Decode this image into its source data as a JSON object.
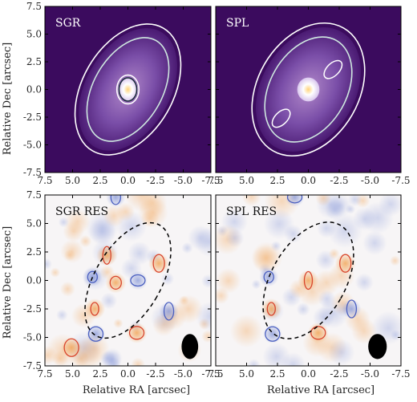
{
  "chart_data": {
    "type": "heatmap",
    "layout": "2x2 panels",
    "xlabel": "Relative RA [arcsec]",
    "ylabel": "Relative Dec [arcsec]",
    "xlim": [
      7.5,
      -7.5
    ],
    "ylim": [
      -7.5,
      7.5
    ],
    "xticks": [
      7.5,
      5.0,
      2.5,
      0.0,
      -2.5,
      -5.0,
      -7.5
    ],
    "yticks": [
      7.5,
      5.0,
      2.5,
      0.0,
      -2.5,
      -5.0,
      -7.5
    ],
    "tick_labels": [
      "7.5",
      "5.0",
      "2.5",
      "0.0",
      "-2.5",
      "-5.0",
      "-7.5"
    ],
    "panels": [
      {
        "label": "SGR",
        "kind": "model",
        "colormap": "magma-like (dark purple to yellow)",
        "background": "#3b0b5e",
        "disk": {
          "center": [
            0,
            0
          ],
          "semi_major": 6.0,
          "semi_minor": 3.8,
          "position_angle_deg": 30
        },
        "core": {
          "center": [
            0,
            0
          ],
          "radius": 0.9
        },
        "contours": [
          {
            "shape": "ellipse",
            "semi_major": 6.4,
            "semi_minor": 4.1,
            "color": "#ffffff"
          },
          {
            "shape": "ellipse",
            "semi_major": 5.1,
            "semi_minor": 3.1,
            "color": "#cfe8e0"
          },
          {
            "shape": "ellipse",
            "semi_major": 1.3,
            "semi_minor": 1.0,
            "color": "#ffffff"
          },
          {
            "shape": "ellipse",
            "semi_major": 1.05,
            "semi_minor": 0.8,
            "color": "#1a2a3a"
          }
        ]
      },
      {
        "label": "SPL",
        "kind": "model",
        "colormap": "magma-like (dark purple to yellow)",
        "background": "#3b0b5e",
        "disk": {
          "center": [
            0,
            0
          ],
          "semi_major": 6.0,
          "semi_minor": 3.8,
          "position_angle_deg": 30
        },
        "core": {
          "center": [
            0,
            0
          ],
          "radius": 0.9
        },
        "contours": [
          {
            "shape": "ellipse",
            "semi_major": 6.4,
            "semi_minor": 4.1,
            "color": "#ffffff"
          },
          {
            "shape": "ellipse",
            "semi_major": 5.1,
            "semi_minor": 3.1,
            "color": "#cfe8e0"
          },
          {
            "shape": "blob",
            "center": [
              -2.0,
              1.8
            ],
            "color": "#ffffff"
          },
          {
            "shape": "blob",
            "center": [
              2.2,
              -2.6
            ],
            "color": "#ffffff"
          }
        ]
      },
      {
        "label": "SGR RES",
        "kind": "residual",
        "colormap": "blue-white-orange",
        "disk_outline": {
          "center": [
            0,
            0
          ],
          "semi_major": 5.6,
          "semi_minor": 3.0,
          "position_angle_deg": 30,
          "style": "dashed"
        },
        "beam": {
          "center": [
            -5.6,
            -5.8
          ],
          "width": 1.5,
          "height": 2.2
        },
        "positive_contours": [
          {
            "center": [
              3.0,
              -2.5
            ]
          },
          {
            "center": [
              -2.8,
              1.5
            ]
          },
          {
            "center": [
              -0.8,
              -4.6
            ]
          },
          {
            "center": [
              1.9,
              2.2
            ]
          },
          {
            "center": [
              1.1,
              -0.2
            ]
          },
          {
            "center": [
              5.1,
              -5.9
            ]
          }
        ],
        "negative_contours": [
          {
            "center": [
              3.2,
              0.3
            ]
          },
          {
            "center": [
              2.9,
              -4.7
            ]
          },
          {
            "center": [
              -3.7,
              -2.7
            ]
          },
          {
            "center": [
              -0.9,
              0.0
            ]
          },
          {
            "center": [
              1.1,
              7.3
            ]
          }
        ]
      },
      {
        "label": "SPL RES",
        "kind": "residual",
        "colormap": "blue-white-orange",
        "disk_outline": {
          "center": [
            0,
            0
          ],
          "semi_major": 5.6,
          "semi_minor": 3.0,
          "position_angle_deg": 30,
          "style": "dashed"
        },
        "beam": {
          "center": [
            -5.6,
            -5.8
          ],
          "width": 1.5,
          "height": 2.2
        },
        "positive_contours": [
          {
            "center": [
              3.0,
              -2.5
            ]
          },
          {
            "center": [
              -3.0,
              1.5
            ]
          },
          {
            "center": [
              -0.8,
              -4.6
            ]
          },
          {
            "center": [
              0.0,
              0.0
            ]
          }
        ],
        "negative_contours": [
          {
            "center": [
              3.2,
              0.3
            ]
          },
          {
            "center": [
              2.9,
              -4.7
            ]
          },
          {
            "center": [
              -3.5,
              -2.5
            ]
          },
          {
            "center": [
              1.1,
              7.3
            ]
          }
        ]
      }
    ]
  }
}
